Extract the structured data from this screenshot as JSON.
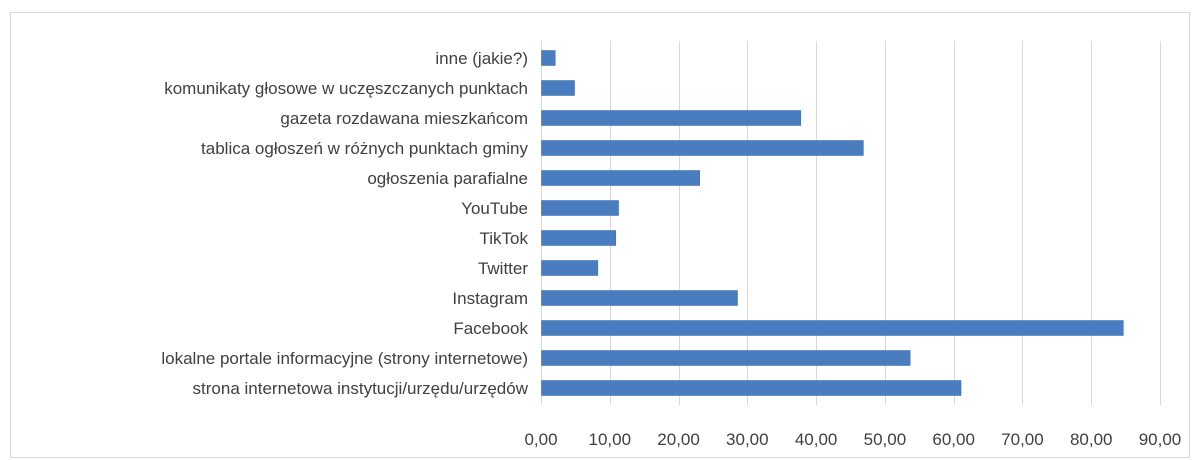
{
  "chart_data": {
    "type": "bar",
    "orientation": "horizontal",
    "title": "",
    "xlabel": "",
    "ylabel": "",
    "categories": [
      "inne (jakie?)",
      "komunikaty głosowe w uczęszczanych punktach",
      "gazeta rozdawana mieszkańcom",
      "tablica ogłoszeń w różnych punktach gminy",
      "ogłoszenia parafialne",
      "YouTube",
      "TikTok",
      "Twitter",
      "Instagram",
      "Facebook",
      "lokalne portale informacyjne (strony internetowe)",
      "strona internetowa instytucji/urzędu/urzędów"
    ],
    "values": [
      2.0,
      4.8,
      37.7,
      46.8,
      23.0,
      11.2,
      10.8,
      8.2,
      28.5,
      84.6,
      53.6,
      61.0
    ],
    "xlim": [
      0,
      90
    ],
    "xticks": [
      0,
      10,
      20,
      30,
      40,
      50,
      60,
      70,
      80,
      90
    ],
    "xtick_labels": [
      "0,00",
      "10,00",
      "20,00",
      "30,00",
      "40,00",
      "50,00",
      "60,00",
      "70,00",
      "80,00",
      "90,00"
    ],
    "grid": true,
    "legend": "none",
    "colors": {
      "bar": "#4a7dbf",
      "bar_edge": "#3c6aa6",
      "grid": "#d9d9d9",
      "text": "#404040"
    }
  }
}
